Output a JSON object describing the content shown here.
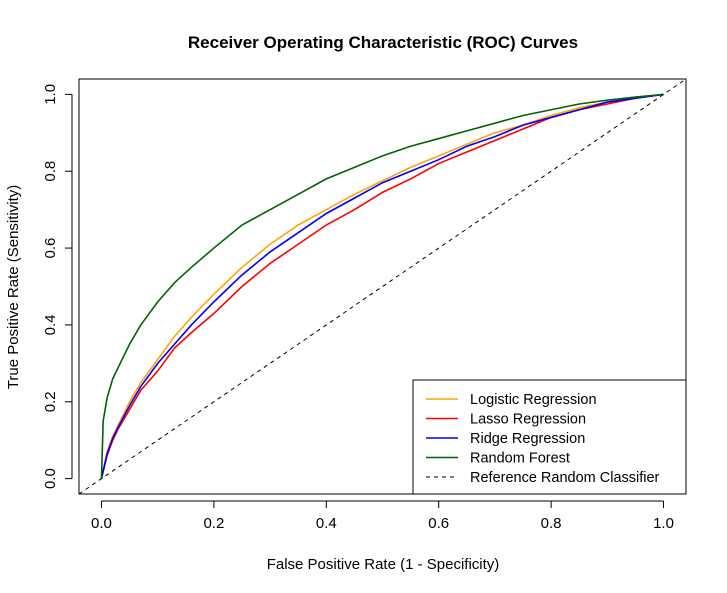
{
  "chart_data": {
    "type": "line",
    "title": "Receiver Operating Characteristic (ROC) Curves",
    "xlabel": "False Positive Rate (1 - Specificity)",
    "ylabel": "True Positive Rate (Sensitivity)",
    "xlim": [
      -0.04,
      1.04
    ],
    "ylim": [
      -0.04,
      1.04
    ],
    "xticks": [
      "0.0",
      "0.2",
      "0.4",
      "0.6",
      "0.8",
      "1.0"
    ],
    "yticks": [
      "0.0",
      "0.2",
      "0.4",
      "0.6",
      "0.8",
      "1.0"
    ],
    "grid": false,
    "legend_position": "bottom-right",
    "series": [
      {
        "name": "Logistic Regression",
        "color": "#FFA500",
        "x": [
          0,
          0.01,
          0.02,
          0.03,
          0.05,
          0.07,
          0.1,
          0.13,
          0.16,
          0.2,
          0.25,
          0.3,
          0.35,
          0.4,
          0.45,
          0.5,
          0.55,
          0.6,
          0.65,
          0.7,
          0.75,
          0.8,
          0.85,
          0.9,
          0.95,
          1.0
        ],
        "y": [
          0,
          0.07,
          0.11,
          0.14,
          0.2,
          0.25,
          0.31,
          0.37,
          0.42,
          0.48,
          0.55,
          0.61,
          0.66,
          0.7,
          0.74,
          0.775,
          0.81,
          0.84,
          0.87,
          0.9,
          0.92,
          0.945,
          0.965,
          0.98,
          0.99,
          1.0
        ]
      },
      {
        "name": "Lasso Regression",
        "color": "#FF0000",
        "x": [
          0,
          0.01,
          0.02,
          0.03,
          0.05,
          0.07,
          0.1,
          0.13,
          0.16,
          0.2,
          0.25,
          0.3,
          0.35,
          0.4,
          0.45,
          0.5,
          0.55,
          0.6,
          0.65,
          0.7,
          0.75,
          0.8,
          0.85,
          0.9,
          0.95,
          1.0
        ],
        "y": [
          0,
          0.06,
          0.1,
          0.13,
          0.18,
          0.23,
          0.28,
          0.34,
          0.38,
          0.43,
          0.5,
          0.56,
          0.61,
          0.66,
          0.7,
          0.745,
          0.78,
          0.82,
          0.85,
          0.88,
          0.91,
          0.94,
          0.96,
          0.975,
          0.99,
          1.0
        ]
      },
      {
        "name": "Ridge Regression",
        "color": "#0000FF",
        "x": [
          0,
          0.01,
          0.02,
          0.03,
          0.05,
          0.07,
          0.1,
          0.13,
          0.16,
          0.2,
          0.25,
          0.3,
          0.35,
          0.4,
          0.45,
          0.5,
          0.55,
          0.6,
          0.65,
          0.7,
          0.75,
          0.8,
          0.85,
          0.9,
          0.95,
          1.0
        ],
        "y": [
          0,
          0.065,
          0.105,
          0.135,
          0.19,
          0.24,
          0.3,
          0.35,
          0.4,
          0.46,
          0.53,
          0.59,
          0.64,
          0.69,
          0.73,
          0.77,
          0.8,
          0.83,
          0.865,
          0.89,
          0.92,
          0.94,
          0.96,
          0.98,
          0.99,
          1.0
        ]
      },
      {
        "name": "Random Forest",
        "color": "#006400",
        "x": [
          0,
          0.003,
          0.01,
          0.02,
          0.03,
          0.05,
          0.07,
          0.1,
          0.13,
          0.16,
          0.2,
          0.25,
          0.3,
          0.35,
          0.4,
          0.45,
          0.5,
          0.55,
          0.6,
          0.65,
          0.7,
          0.75,
          0.8,
          0.85,
          0.9,
          0.95,
          1.0
        ],
        "y": [
          0,
          0.15,
          0.21,
          0.26,
          0.29,
          0.35,
          0.4,
          0.46,
          0.51,
          0.55,
          0.6,
          0.66,
          0.7,
          0.74,
          0.78,
          0.81,
          0.84,
          0.865,
          0.885,
          0.905,
          0.925,
          0.945,
          0.96,
          0.975,
          0.985,
          0.993,
          1.0
        ]
      },
      {
        "name": "Reference Random Classifier",
        "color": "#000000",
        "dashed": true,
        "x": [
          -0.04,
          1.04
        ],
        "y": [
          -0.04,
          1.04
        ]
      }
    ]
  }
}
